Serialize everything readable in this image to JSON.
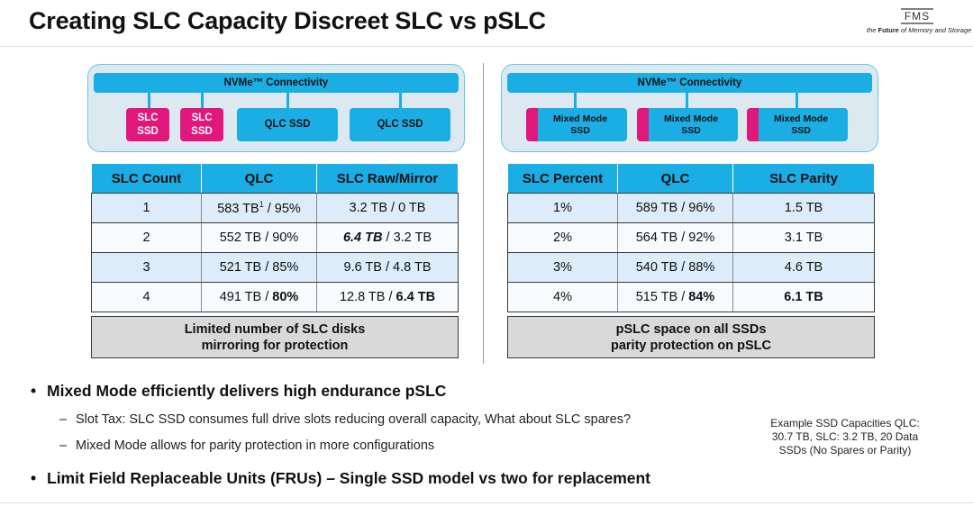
{
  "title": "Creating SLC Capacity Discreet SLC vs pSLC",
  "logo": {
    "mark": "FMS",
    "tagline_prefix": "the ",
    "tagline_main": "Future",
    "tagline_rest": " of Memory and Storage"
  },
  "left_diagram": {
    "bus_label": "NVMe™ Connectivity",
    "drives": [
      {
        "type": "slc",
        "line1": "SLC",
        "line2": "SSD"
      },
      {
        "type": "slc",
        "line1": "SLC",
        "line2": "SSD"
      },
      {
        "type": "qlc",
        "label": "QLC SSD"
      },
      {
        "type": "qlc",
        "label": "QLC SSD"
      }
    ]
  },
  "right_diagram": {
    "bus_label": "NVMe™ Connectivity",
    "drives": [
      {
        "line1": "Mixed Mode",
        "line2": "SSD"
      },
      {
        "line1": "Mixed Mode",
        "line2": "SSD"
      },
      {
        "line1": "Mixed Mode",
        "line2": "SSD"
      }
    ]
  },
  "left_table": {
    "headers": [
      "SLC Count",
      "QLC",
      "SLC Raw/Mirror"
    ],
    "rows": [
      {
        "count": "1",
        "qlc_main": "583 TB",
        "qlc_sup": "1",
        "qlc_rest": " / 95%",
        "raw": "3.2 TB / 0 TB"
      },
      {
        "count": "2",
        "qlc": "552 TB / 90%",
        "raw_strong": "6.4 TB",
        "raw_rest": " / 3.2 TB"
      },
      {
        "count": "3",
        "qlc": "521 TB / 85%",
        "raw": "9.6 TB / 4.8 TB"
      },
      {
        "count": "4",
        "qlc_pre": "491 TB / ",
        "qlc_strong": "80%",
        "raw_pre": "12.8 TB / ",
        "raw_strong": "6.4 TB"
      }
    ]
  },
  "right_table": {
    "headers": [
      "SLC Percent",
      "QLC",
      "SLC Parity"
    ],
    "rows": [
      {
        "percent": "1%",
        "qlc": "589 TB / 96%",
        "parity": "1.5 TB"
      },
      {
        "percent": "2%",
        "qlc": "564 TB / 92%",
        "parity": "3.1 TB"
      },
      {
        "percent": "3%",
        "qlc": "540 TB / 88%",
        "parity": "4.6 TB"
      },
      {
        "percent": "4%",
        "qlc_pre": "515 TB / ",
        "qlc_strong": "84%",
        "parity": "6.1 TB"
      }
    ]
  },
  "left_note": {
    "line1": "Limited number of SLC disks",
    "line2": "mirroring for protection"
  },
  "right_note": {
    "line1": "pSLC space on all SSDs",
    "line2": "parity protection on pSLC"
  },
  "bullets": {
    "b1": "Mixed Mode efficiently delivers high endurance pSLC",
    "sub1": "Slot Tax: SLC SSD consumes full drive slots reducing overall capacity, What about SLC spares?",
    "sub2": "Mixed Mode allows for parity protection in more configurations",
    "b2": "Limit Field Replaceable Units (FRUs) – Single SSD model vs two for replacement",
    "bullet_glyph": "•",
    "dash_glyph": "–"
  },
  "side_note": {
    "line1": "Example SSD Capacities QLC:",
    "line2": "30.7 TB, SLC: 3.2 TB, 20 Data",
    "line3": "SSDs (No Spares or Parity)"
  }
}
